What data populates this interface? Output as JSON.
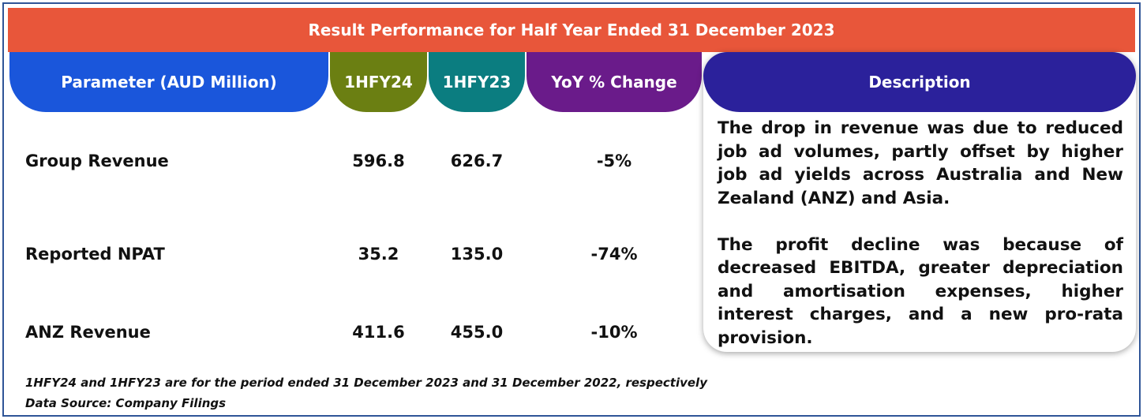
{
  "title": "Result Performance for Half Year Ended 31 December 2023",
  "columns": {
    "parameter": "Parameter (AUD Million)",
    "fy24": "1HFY24",
    "fy23": "1HFY23",
    "yoy": "YoY % Change",
    "description": "Description"
  },
  "rows": [
    {
      "label": "Group Revenue",
      "fy24": "596.8",
      "fy23": "626.7",
      "yoy": "-5%"
    },
    {
      "label": "Reported NPAT",
      "fy24": "35.2",
      "fy23": "135.0",
      "yoy": "-74%"
    },
    {
      "label": "ANZ Revenue",
      "fy24": "411.6",
      "fy23": "455.0",
      "yoy": "-10%"
    }
  ],
  "description": {
    "para1": "The drop in revenue was due to reduced job ad volumes, partly offset by higher job ad yields across Australia and New Zealand (ANZ) and Asia.",
    "para2": "The profit decline was because of decreased EBITDA, greater depreciation and amortisation expenses, higher interest charges, and a new pro-rata provision."
  },
  "footnotes": {
    "period_note": "1HFY24 and 1HFY23 are for the period ended 31 December 2023 and 31 December 2022, respectively",
    "source": "Data Source: Company Filings"
  },
  "colors": {
    "title_bar": "#e8563a",
    "param_header": "#1a56db",
    "fy24_header": "#6b7f12",
    "fy23_header": "#0b7d80",
    "yoy_header": "#6a1b8a",
    "desc_header": "#2b219b",
    "frame_border": "#2f5597"
  }
}
